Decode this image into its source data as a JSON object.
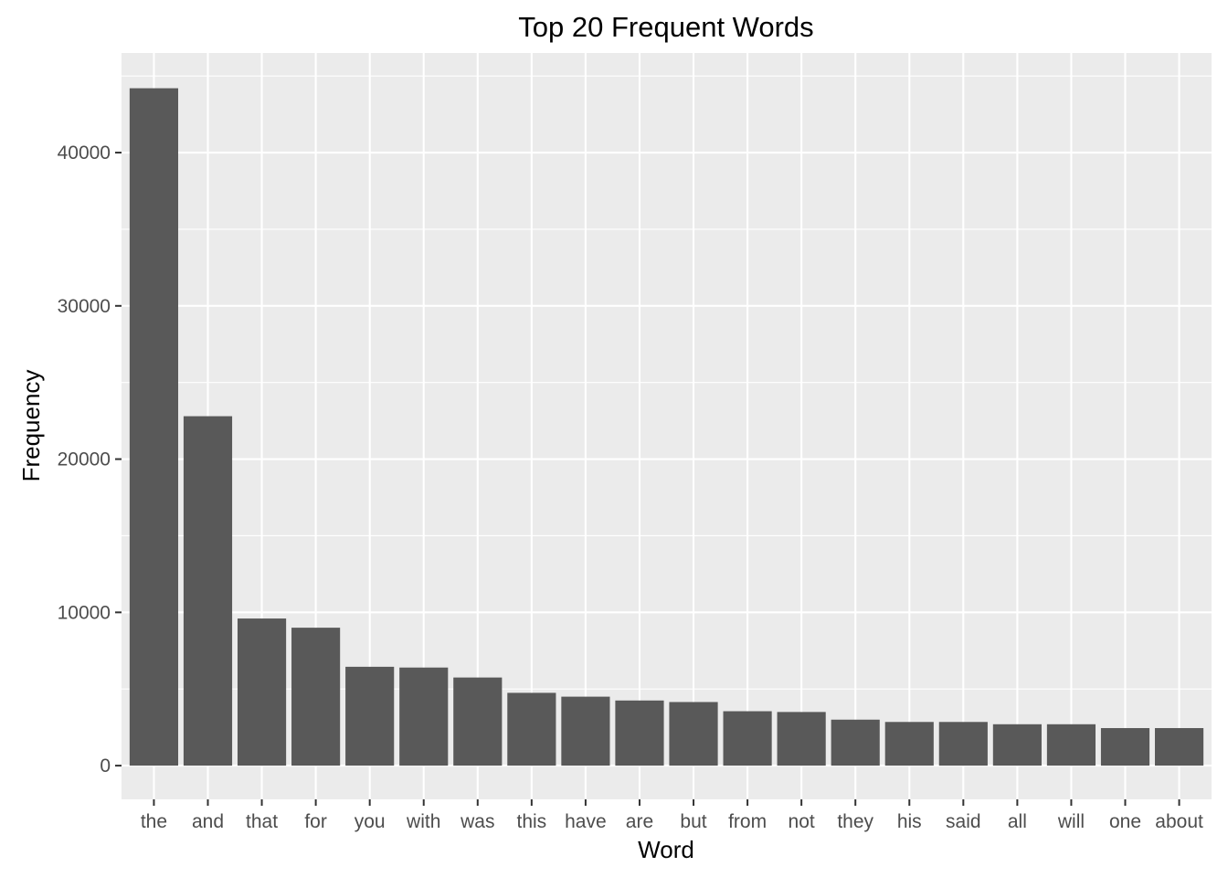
{
  "chart_data": {
    "type": "bar",
    "title": "Top 20 Frequent Words",
    "xlabel": "Word",
    "ylabel": "Frequency",
    "categories": [
      "the",
      "and",
      "that",
      "for",
      "you",
      "with",
      "was",
      "this",
      "have",
      "are",
      "but",
      "from",
      "not",
      "they",
      "his",
      "said",
      "all",
      "will",
      "one",
      "about"
    ],
    "values": [
      44200,
      22800,
      9600,
      9000,
      6450,
      6400,
      5750,
      4750,
      4500,
      4250,
      4150,
      3550,
      3500,
      3000,
      2850,
      2850,
      2700,
      2700,
      2450,
      2450
    ],
    "ylim": [
      -2200,
      46500
    ],
    "yticks": [
      0,
      10000,
      20000,
      30000,
      40000
    ],
    "ytick_labels": [
      "0",
      "10000",
      "20000",
      "30000",
      "40000"
    ],
    "grid": true,
    "colors": {
      "bar": "#595959",
      "panel": "#ebebeb",
      "grid": "#ffffff"
    }
  }
}
